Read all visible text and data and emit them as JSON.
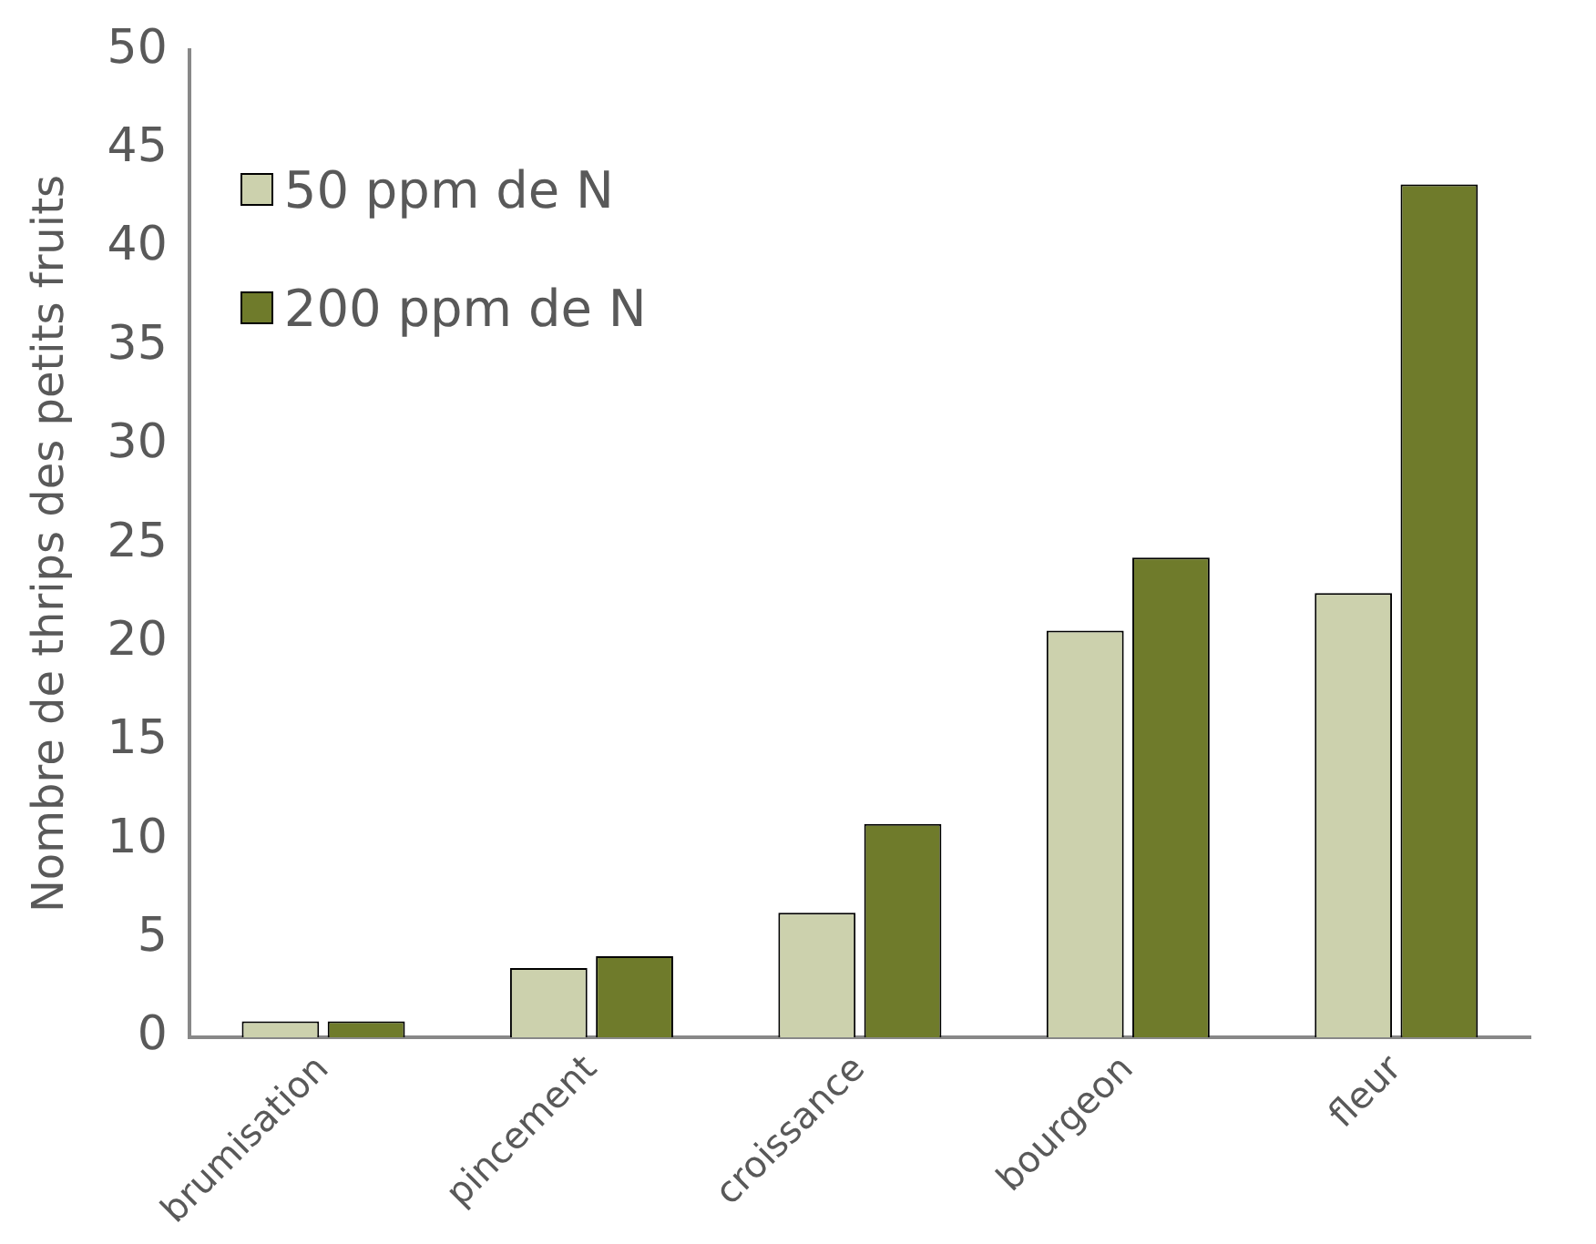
{
  "chart_data": {
    "type": "bar",
    "ylabel": "Nombre de thrips des petits fruits",
    "categories": [
      "brumisation",
      "pincement",
      "croissance",
      "bourgeon",
      "fleur"
    ],
    "series": [
      {
        "name": "50 ppm de N",
        "color": "#ccd1ad",
        "values": [
          0.8,
          3.5,
          6.3,
          20.6,
          22.5
        ]
      },
      {
        "name": "200 ppm de N",
        "color": "#6f7b2b",
        "values": [
          0.8,
          4.1,
          10.8,
          24.3,
          43.2
        ]
      }
    ],
    "ylim": [
      0,
      50
    ],
    "yticks": [
      0,
      5,
      10,
      15,
      20,
      25,
      30,
      35,
      40,
      45,
      50
    ],
    "grid": false,
    "legend": "top left"
  }
}
